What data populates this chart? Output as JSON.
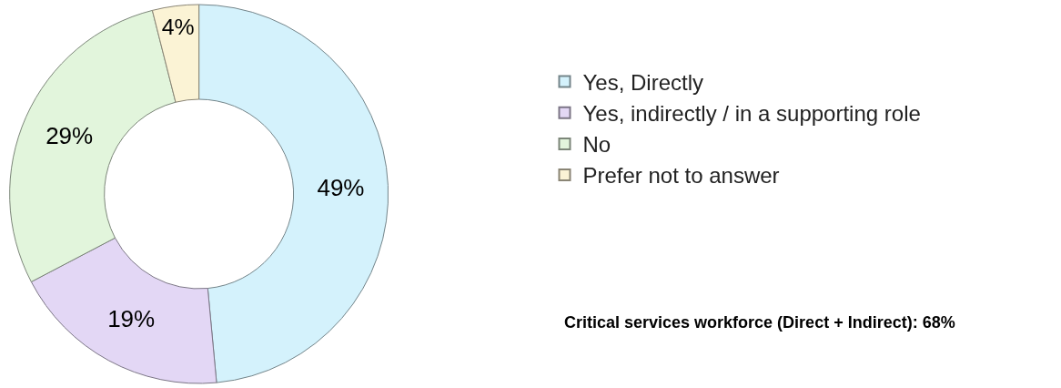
{
  "chart_data": {
    "type": "donut",
    "categories": [
      "Yes, Directly",
      "Yes, indirectly / in a supporting role",
      "No",
      "Prefer not to answer"
    ],
    "values": [
      49,
      19,
      29,
      4
    ],
    "colors": [
      "#d4f2fc",
      "#e3d7f5",
      "#e2f5dc",
      "#fbf3d5"
    ],
    "value_labels": [
      "49%",
      "19%",
      "29%",
      "4%"
    ],
    "legend": "right",
    "annotations": [
      "Critical services workforce (Direct + Indirect): 68%"
    ]
  }
}
